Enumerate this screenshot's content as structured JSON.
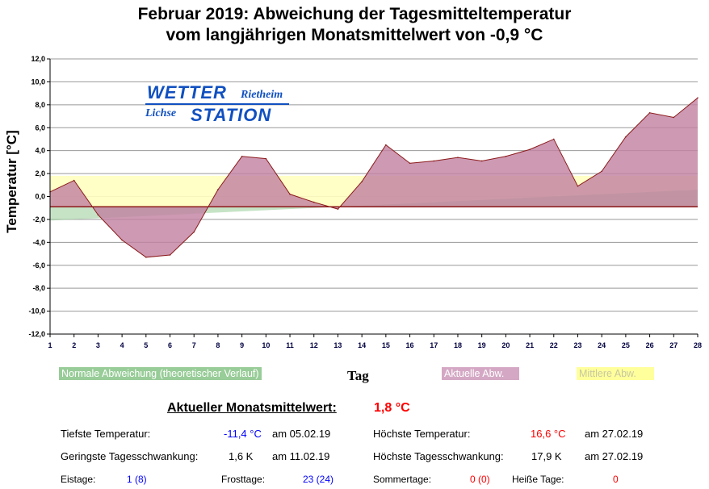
{
  "title_line1": "Februar 2019: Abweichung der Tagesmitteltemperatur",
  "title_line2": "vom langjährigen Monatsmittelwert von -0,9 °C",
  "logo": {
    "wetter": "WETTER",
    "rietheim": "Rietheim",
    "lichse": "Lichse",
    "station": "STATION"
  },
  "legend": {
    "normal": "Normale Abweichung (theoretischer Verlauf)",
    "actual": "Aktuelle Abw.",
    "mean": "Mittlere Abw."
  },
  "colors": {
    "actual_fill": "#c080a0",
    "actual_line": "#8b1a1a",
    "mean_fill": "#ffffc0",
    "normal_fill": "#a0d0a0"
  },
  "stats": {
    "monthly_mean_label": "Aktueller Monatsmittelwert:",
    "monthly_mean_value": "1,8 °C",
    "min_label": "Tiefste Temperatur:",
    "min_value": "-11,4 °C",
    "min_date": "am 05.02.19",
    "max_label": "Höchste Temperatur:",
    "max_value": "16,6 °C",
    "max_date": "am 27.02.19",
    "minrange_label": "Geringste Tagesschwankung:",
    "minrange_value": "1,6 K",
    "minrange_date": "am 11.02.19",
    "maxrange_label": "Höchste Tagesschwankung:",
    "maxrange_value": "17,9 K",
    "maxrange_date": "am 27.02.19",
    "ice_label": "Eistage:",
    "ice_value": "1 (8)",
    "frost_label": "Frosttage:",
    "frost_value": "23 (24)",
    "summer_label": "Sommertage:",
    "summer_value": "0 (0)",
    "hot_label": "Heiße Tage:",
    "hot_value": "0"
  },
  "chart_data": {
    "type": "area",
    "xlabel": "Tag",
    "ylabel": "Temperatur [°C]",
    "ylim": [
      -12,
      12
    ],
    "xlim": [
      1,
      28
    ],
    "baseline": -0.9,
    "mean_deviation": 1.8,
    "yticks": [
      "12,0",
      "10,0",
      "8,0",
      "6,0",
      "4,0",
      "2,0",
      "0,0",
      "-2,0",
      "-4,0",
      "-6,0",
      "-8,0",
      "-10,0",
      "-12,0"
    ],
    "x": [
      1,
      2,
      3,
      4,
      5,
      6,
      7,
      8,
      9,
      10,
      11,
      12,
      13,
      14,
      15,
      16,
      17,
      18,
      19,
      20,
      21,
      22,
      23,
      24,
      25,
      26,
      27,
      28
    ],
    "series": [
      {
        "name": "Aktuelle Abw.",
        "values": [
          0.4,
          1.4,
          -1.6,
          -3.8,
          -5.3,
          -5.1,
          -3.1,
          0.6,
          3.5,
          3.3,
          0.2,
          -0.5,
          -1.1,
          1.3,
          4.5,
          2.9,
          3.1,
          3.4,
          3.1,
          3.5,
          4.1,
          5.0,
          0.9,
          2.2,
          5.2,
          7.3,
          6.9,
          8.6
        ]
      },
      {
        "name": "Normale Abweichung (theoretischer Verlauf)",
        "start": -2.1,
        "end": 0.6
      }
    ]
  }
}
